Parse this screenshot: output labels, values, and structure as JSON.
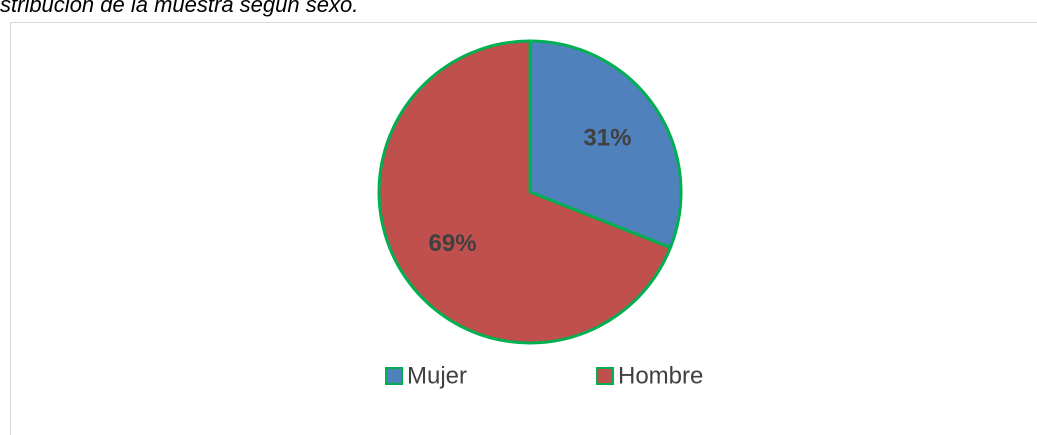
{
  "chart_data": {
    "type": "pie",
    "title": "stribución de la muestra según sexo.",
    "categories": [
      "Mujer",
      "Hombre"
    ],
    "values": [
      31,
      69
    ],
    "value_labels": [
      "31%",
      "69%"
    ],
    "colors": [
      "#4f81bd",
      "#c0504d"
    ],
    "edge_color": "#00b050",
    "legend": "bottom"
  }
}
